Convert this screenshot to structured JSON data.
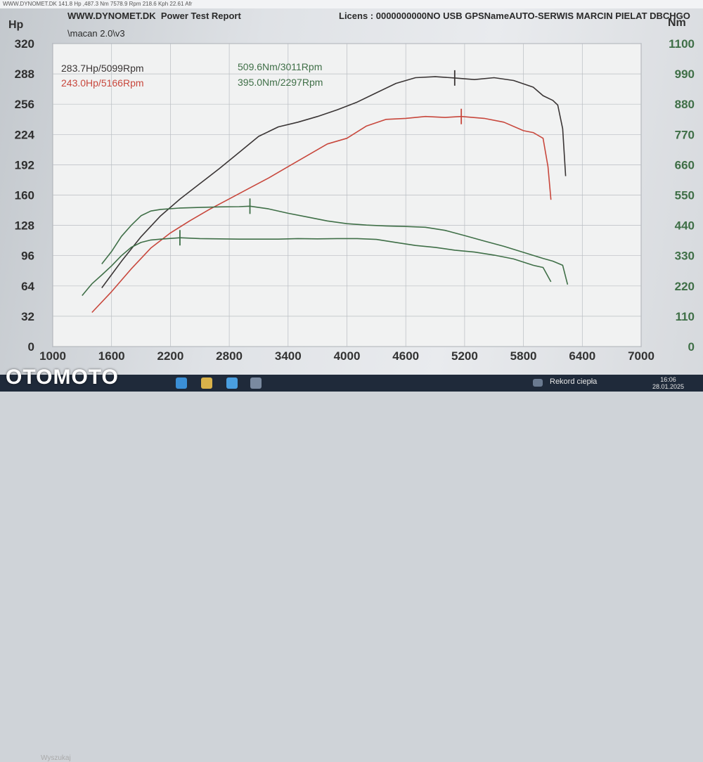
{
  "window": {
    "titlebar_text": "WWW.DYNOMET.DK   141.8 Hp ,487.3 Nm 7578.9 Rpm  218.6 Kph     22.61 Afr"
  },
  "report": {
    "site": "WWW.DYNOMET.DK",
    "title": "Power Test Report",
    "license": "Licens :  0000000000NO USB GPSNameAUTO-SERWIS MARCIN PIELAT  DBCHGO",
    "file_label": "\\macan 2.0\\v3"
  },
  "chart_data": {
    "type": "line",
    "y_left_unit": "Hp",
    "y_right_unit": "Nm",
    "xlim": [
      1000,
      7000
    ],
    "ylim_left": [
      0,
      320
    ],
    "ylim_right": [
      0,
      1100
    ],
    "x_ticks": [
      "1000",
      "1600",
      "2200",
      "2800",
      "3400",
      "4000",
      "4600",
      "5200",
      "5800",
      "6400",
      "7000"
    ],
    "y_left_ticks": [
      "0",
      "32",
      "64",
      "96",
      "128",
      "160",
      "192",
      "224",
      "256",
      "288",
      "320"
    ],
    "y_right_ticks": [
      "0",
      "110",
      "220",
      "330",
      "440",
      "550",
      "660",
      "770",
      "880",
      "990",
      "1100"
    ],
    "grid": true,
    "colors": {
      "power_after": "#3a3535",
      "power_before": "#c8473c",
      "torque": "#3f6f47"
    },
    "annotations": [
      {
        "text": "283.7Hp/5099Rpm",
        "color": "#3a3535"
      },
      {
        "text": "243.0Hp/5166Rpm",
        "color": "#c8473c"
      },
      {
        "text": "509.6Nm/3011Rpm",
        "color": "#3f6f47"
      },
      {
        "text": "395.0Nm/2297Rpm",
        "color": "#3f6f47"
      }
    ],
    "series": [
      {
        "axis": "left",
        "color": "#3a3535",
        "peak_x": 5099,
        "x": [
          1500,
          1700,
          1900,
          2100,
          2300,
          2500,
          2700,
          2900,
          3100,
          3300,
          3500,
          3700,
          3900,
          4100,
          4300,
          4500,
          4700,
          4900,
          5099,
          5300,
          5500,
          5700,
          5900,
          6000,
          6100,
          6150,
          6200,
          6230
        ],
        "values": [
          62,
          90,
          116,
          138,
          156,
          172,
          188,
          205,
          222,
          232,
          237,
          243,
          250,
          258,
          268,
          278,
          284,
          285,
          283.7,
          282,
          284,
          281,
          274,
          265,
          260,
          255,
          230,
          180
        ]
      },
      {
        "axis": "left",
        "color": "#c8473c",
        "peak_x": 5166,
        "x": [
          1400,
          1600,
          1800,
          2000,
          2200,
          2400,
          2600,
          2800,
          3000,
          3200,
          3400,
          3600,
          3800,
          4000,
          4200,
          4400,
          4600,
          4800,
          5000,
          5166,
          5400,
          5600,
          5800,
          5900,
          6000,
          6050,
          6080
        ],
        "values": [
          36,
          58,
          82,
          104,
          120,
          133,
          145,
          156,
          167,
          178,
          190,
          202,
          214,
          220,
          233,
          240,
          241,
          243,
          242,
          243,
          241,
          237,
          228,
          226,
          220,
          190,
          155
        ]
      },
      {
        "axis": "right",
        "color": "#3f6f47",
        "peak_x": 3011,
        "x": [
          1500,
          1600,
          1700,
          1800,
          1900,
          2000,
          2100,
          2300,
          2500,
          2700,
          2900,
          3011,
          3200,
          3400,
          3600,
          3800,
          4000,
          4200,
          4400,
          4600,
          4800,
          5000,
          5200,
          5400,
          5600,
          5800,
          6000,
          6100,
          6200,
          6250
        ],
        "values": [
          300,
          345,
          400,
          440,
          475,
          492,
          498,
          503,
          505,
          507,
          508,
          509.6,
          500,
          484,
          470,
          456,
          446,
          441,
          438,
          436,
          433,
          422,
          403,
          383,
          364,
          342,
          320,
          310,
          295,
          225
        ]
      },
      {
        "axis": "right",
        "color": "#3f6f47",
        "peak_x": 2297,
        "x": [
          1300,
          1400,
          1500,
          1600,
          1700,
          1800,
          1900,
          2000,
          2100,
          2297,
          2500,
          2700,
          2900,
          3100,
          3300,
          3500,
          3700,
          3900,
          4100,
          4300,
          4500,
          4700,
          4900,
          5100,
          5300,
          5500,
          5700,
          5900,
          6000,
          6080
        ],
        "values": [
          185,
          228,
          260,
          293,
          330,
          360,
          378,
          387,
          390,
          395,
          392,
          391,
          390,
          390,
          390,
          392,
          391,
          392,
          392,
          389,
          378,
          367,
          360,
          350,
          343,
          332,
          318,
          295,
          287,
          235
        ]
      }
    ]
  },
  "taskbar": {
    "search_placeholder": "Wyszukaj",
    "tray_status": "Rekord ciepła",
    "time": "16:06",
    "date": "28.01.2025"
  },
  "watermark": {
    "brand": "OTOMOTO"
  }
}
